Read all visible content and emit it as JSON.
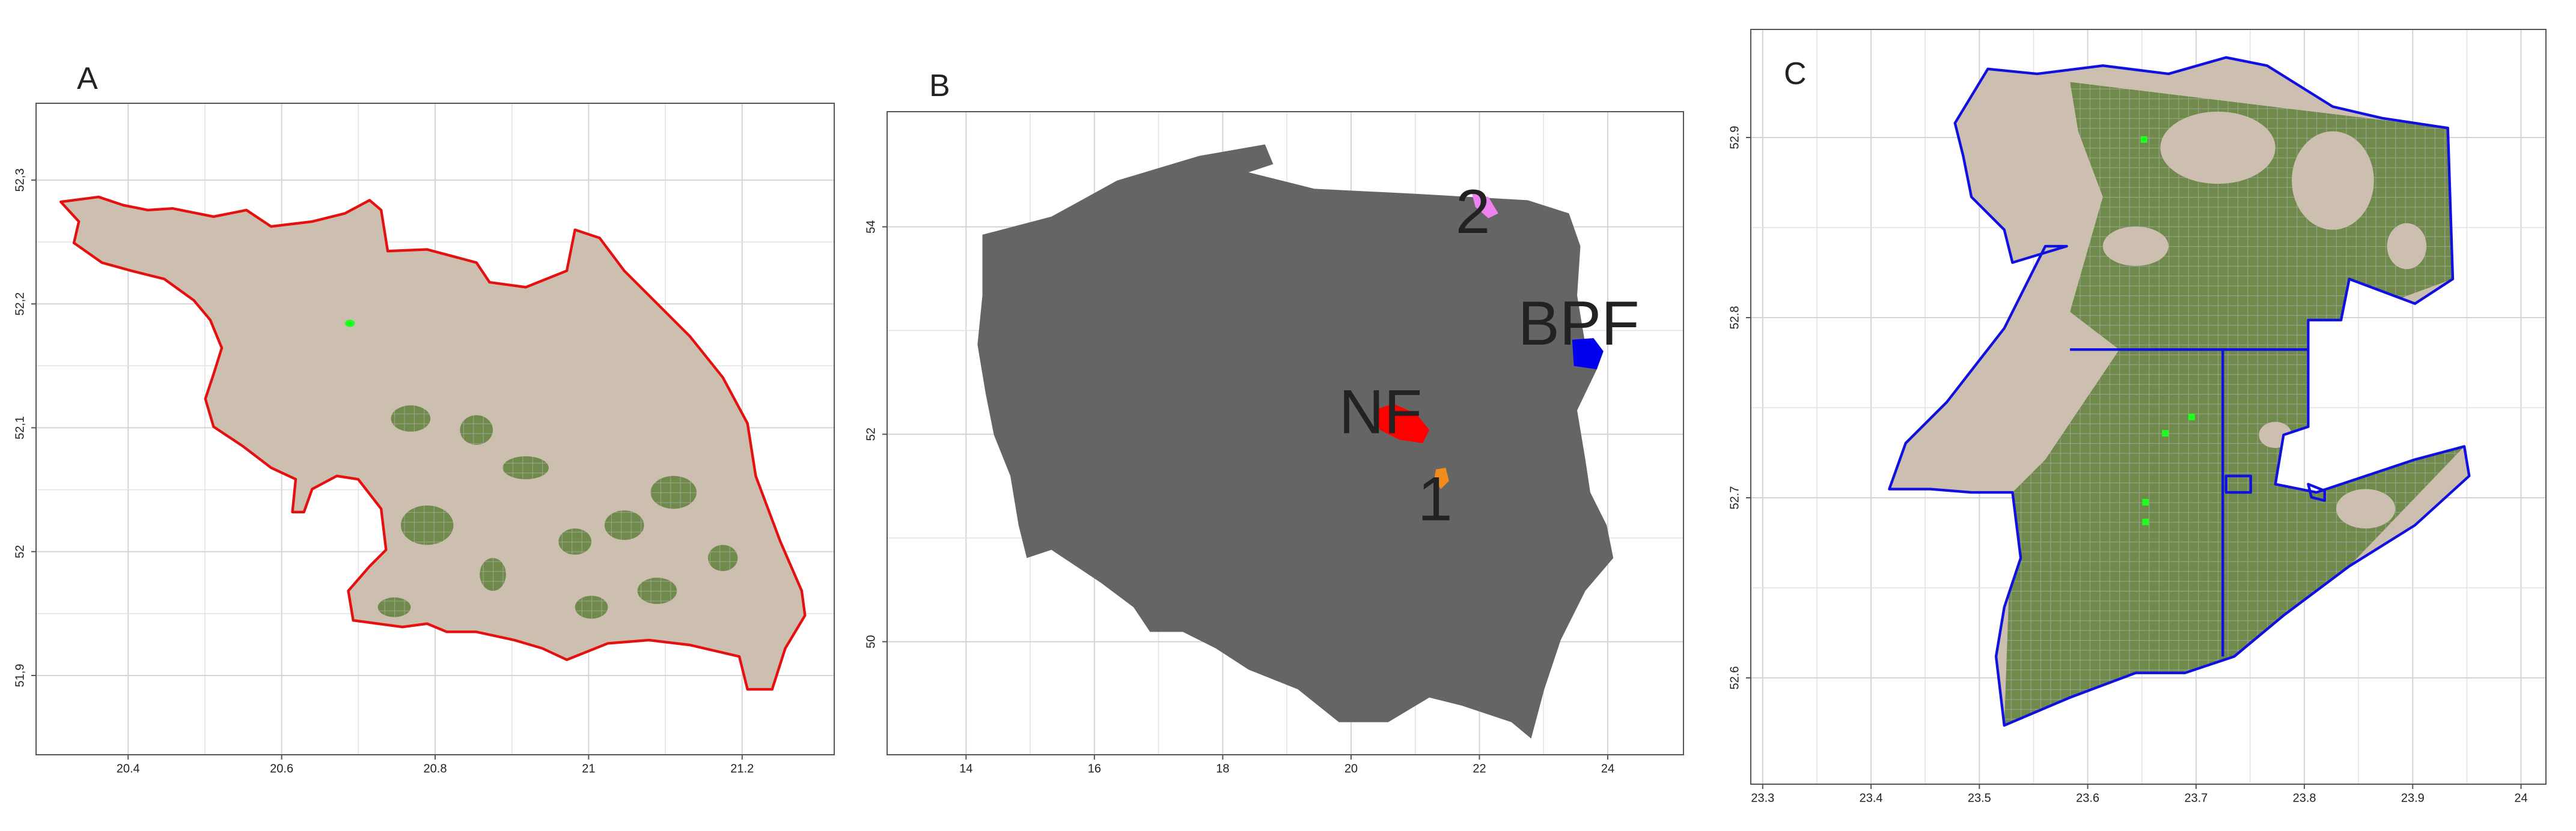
{
  "panels": [
    {
      "label": "A",
      "xlim": [
        20.28,
        21.32
      ],
      "ylim": [
        51.836,
        52.362
      ],
      "xticks": [
        20.4,
        20.6,
        20.8,
        21,
        21.2
      ],
      "yticks": [
        {
          "value": 51.9,
          "label": "51,9"
        },
        {
          "value": 52,
          "label": "52"
        },
        {
          "value": 52.1,
          "label": "52,1"
        },
        {
          "value": 52.2,
          "label": "52,2"
        },
        {
          "value": 52.3,
          "label": "52,3"
        }
      ]
    },
    {
      "label": "B",
      "xlim": [
        12.77,
        25.18
      ],
      "ylim": [
        48.91,
        55.11
      ],
      "xticks": [
        14,
        16,
        18,
        20,
        22,
        24
      ],
      "yticks": [
        50,
        52,
        54
      ],
      "annotations": [
        "NF",
        "BPF",
        "1",
        "2"
      ]
    },
    {
      "label": "C",
      "xlim": [
        23.289,
        24.023
      ],
      "ylim": [
        52.541,
        52.96
      ],
      "xticks": [
        23.3,
        23.4,
        23.5,
        23.6,
        23.7,
        23.8,
        23.9,
        24
      ],
      "yticks": [
        52.6,
        52.7,
        52.8,
        52.9
      ]
    }
  ]
}
